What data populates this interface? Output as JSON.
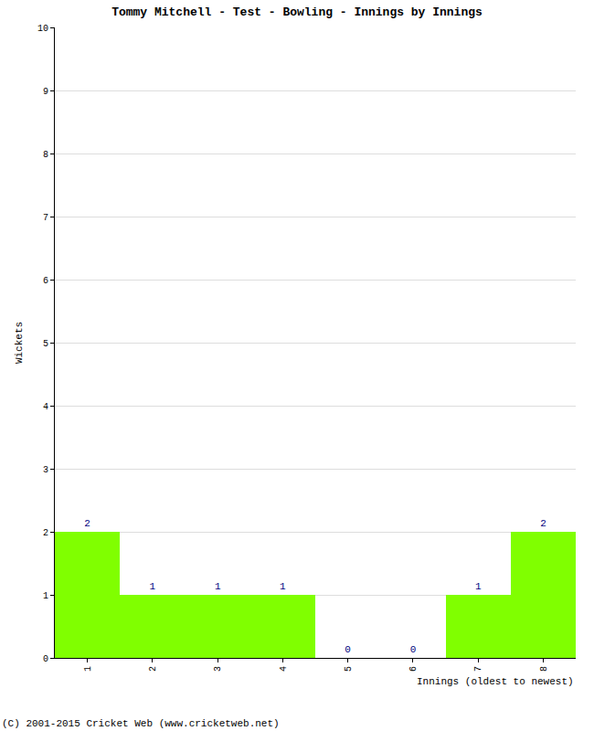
{
  "chart_data": {
    "type": "bar",
    "title": "Tommy Mitchell - Test - Bowling - Innings by Innings",
    "xlabel": "Innings (oldest to newest)",
    "ylabel": "Wickets",
    "categories": [
      "1",
      "2",
      "3",
      "4",
      "5",
      "6",
      "7",
      "8"
    ],
    "values": [
      2,
      1,
      1,
      1,
      0,
      0,
      1,
      2
    ],
    "color": "#80ff00",
    "ylim": [
      0,
      10
    ],
    "yticks": [
      0,
      1,
      2,
      3,
      4,
      5,
      6,
      7,
      8,
      9,
      10
    ],
    "grid": true,
    "data_labels": true,
    "annotations": [
      {
        "text": "(C) 2001-2015 Cricket Web (www.cricketweb.net)"
      }
    ]
  }
}
